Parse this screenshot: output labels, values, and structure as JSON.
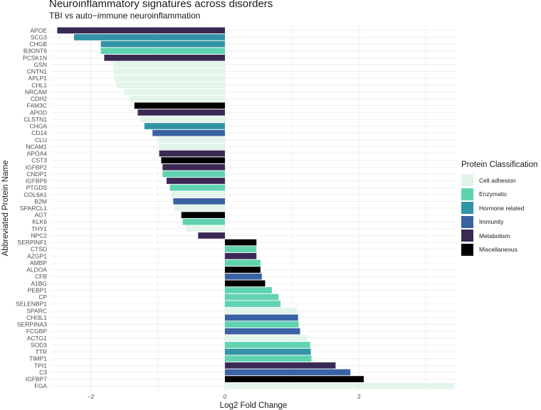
{
  "chart_data": {
    "type": "bar",
    "orientation": "horizontal",
    "title": "Neuroinflammatory signatures across disorders",
    "subtitle": "TBI vs auto−immune neuroinflammation",
    "xlabel": "Log2 Fold Change",
    "ylabel": "Abbreviated Protein Name",
    "xlim": [
      -2.6,
      3.45
    ],
    "xticks": [
      -2,
      0,
      2
    ],
    "xtick_labels": [
      "−2",
      "0",
      "2"
    ],
    "grid": true,
    "legend": {
      "title": "Protein Classification",
      "position": "right",
      "entries": [
        {
          "name": "Cell adhesion",
          "color": "#e3f5ea"
        },
        {
          "name": "Enzymatic",
          "color": "#5fd3b0"
        },
        {
          "name": "Hormone related",
          "color": "#3294a6"
        },
        {
          "name": "Immunity",
          "color": "#3b62a3"
        },
        {
          "name": "Metabolism",
          "color": "#3a2955"
        },
        {
          "name": "Miscellaneous",
          "color": "#000000"
        }
      ]
    },
    "bars": [
      {
        "protein": "APOE",
        "value": -2.5,
        "class": "Metabolism"
      },
      {
        "protein": "SCG3",
        "value": -2.25,
        "class": "Hormone related"
      },
      {
        "protein": "CHGB",
        "value": -1.85,
        "class": "Hormone related"
      },
      {
        "protein": "B3GNT6",
        "value": -1.85,
        "class": "Enzymatic"
      },
      {
        "protein": "PCSK1N",
        "value": -1.8,
        "class": "Metabolism"
      },
      {
        "protein": "GSN",
        "value": -1.67,
        "class": "Cell adhesion"
      },
      {
        "protein": "CNTN1",
        "value": -1.66,
        "class": "Cell adhesion"
      },
      {
        "protein": "APLP1",
        "value": -1.65,
        "class": "Cell adhesion"
      },
      {
        "protein": "CHL1",
        "value": -1.62,
        "class": "Cell adhesion"
      },
      {
        "protein": "NRCAM",
        "value": -1.5,
        "class": "Cell adhesion"
      },
      {
        "protein": "CDH2",
        "value": -1.42,
        "class": "Cell adhesion"
      },
      {
        "protein": "FAM3C",
        "value": -1.35,
        "class": "Miscellaneous"
      },
      {
        "protein": "APOD",
        "value": -1.3,
        "class": "Metabolism"
      },
      {
        "protein": "CLSTN1",
        "value": -1.26,
        "class": "Cell adhesion"
      },
      {
        "protein": "CHGA",
        "value": -1.2,
        "class": "Hormone related"
      },
      {
        "protein": "CD14",
        "value": -1.08,
        "class": "Immunity"
      },
      {
        "protein": "CLU",
        "value": -1.0,
        "class": "Cell adhesion"
      },
      {
        "protein": "NCAM1",
        "value": -0.98,
        "class": "Cell adhesion"
      },
      {
        "protein": "APOA4",
        "value": -0.98,
        "class": "Metabolism"
      },
      {
        "protein": "CST3",
        "value": -0.95,
        "class": "Miscellaneous"
      },
      {
        "protein": "IGFBP2",
        "value": -0.93,
        "class": "Metabolism"
      },
      {
        "protein": "CNDP1",
        "value": -0.93,
        "class": "Enzymatic"
      },
      {
        "protein": "IGFBP6",
        "value": -0.87,
        "class": "Metabolism"
      },
      {
        "protein": "PTGDS",
        "value": -0.82,
        "class": "Enzymatic"
      },
      {
        "protein": "COL6A1",
        "value": -0.8,
        "class": "Cell adhesion"
      },
      {
        "protein": "B2M",
        "value": -0.77,
        "class": "Immunity"
      },
      {
        "protein": "SPARCL1",
        "value": -0.75,
        "class": "Cell adhesion"
      },
      {
        "protein": "AGT",
        "value": -0.65,
        "class": "Miscellaneous"
      },
      {
        "protein": "KLK6",
        "value": -0.63,
        "class": "Enzymatic"
      },
      {
        "protein": "THY1",
        "value": -0.58,
        "class": "Cell adhesion"
      },
      {
        "protein": "NPC2",
        "value": -0.4,
        "class": "Metabolism"
      },
      {
        "protein": "SERPINF1",
        "value": 0.47,
        "class": "Miscellaneous"
      },
      {
        "protein": "CTSD",
        "value": 0.47,
        "class": "Enzymatic"
      },
      {
        "protein": "AZGP1",
        "value": 0.47,
        "class": "Metabolism"
      },
      {
        "protein": "AMBP",
        "value": 0.53,
        "class": "Enzymatic"
      },
      {
        "protein": "ALDOA",
        "value": 0.53,
        "class": "Miscellaneous"
      },
      {
        "protein": "CFB",
        "value": 0.55,
        "class": "Immunity"
      },
      {
        "protein": "A1BG",
        "value": 0.6,
        "class": "Miscellaneous"
      },
      {
        "protein": "PEBP1",
        "value": 0.7,
        "class": "Enzymatic"
      },
      {
        "protein": "CP",
        "value": 0.8,
        "class": "Enzymatic"
      },
      {
        "protein": "SELENBP1",
        "value": 0.83,
        "class": "Enzymatic"
      },
      {
        "protein": "SPARC",
        "value": 1.07,
        "class": "Cell adhesion"
      },
      {
        "protein": "CHI3L1",
        "value": 1.09,
        "class": "Immunity"
      },
      {
        "protein": "SERPINA3",
        "value": 1.1,
        "class": "Enzymatic"
      },
      {
        "protein": "FCGBP",
        "value": 1.12,
        "class": "Immunity"
      },
      {
        "protein": "ACTG1",
        "value": 1.22,
        "class": "Cell adhesion"
      },
      {
        "protein": "SOD3",
        "value": 1.27,
        "class": "Enzymatic"
      },
      {
        "protein": "TTR",
        "value": 1.28,
        "class": "Hormone related"
      },
      {
        "protein": "TIMP1",
        "value": 1.29,
        "class": "Enzymatic"
      },
      {
        "protein": "TPI1",
        "value": 1.65,
        "class": "Metabolism"
      },
      {
        "protein": "C3",
        "value": 1.87,
        "class": "Immunity"
      },
      {
        "protein": "IGFBP7",
        "value": 2.07,
        "class": "Miscellaneous"
      },
      {
        "protein": "FGA",
        "value": 3.42,
        "class": "Cell adhesion"
      }
    ]
  }
}
